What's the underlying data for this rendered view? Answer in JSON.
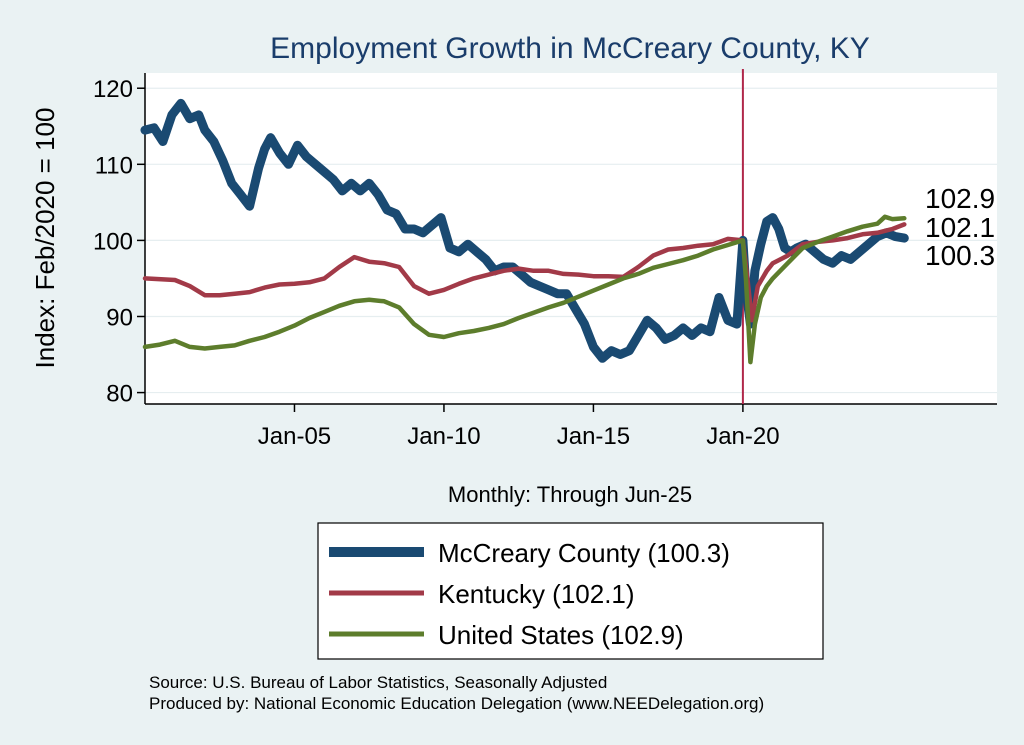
{
  "chart_data": {
    "type": "line",
    "title": "Employment Growth in McCreary  County, KY",
    "ylabel": "Index: Feb/2020 = 100",
    "xlabel": "Monthly: Through Jun-25",
    "ylim": [
      78.5,
      122
    ],
    "yticks": [
      80,
      90,
      100,
      110,
      120
    ],
    "xlim": [
      2000.0,
      2028.5
    ],
    "xticks": [
      {
        "x": 2005.0,
        "label": "Jan-05"
      },
      {
        "x": 2010.0,
        "label": "Jan-10"
      },
      {
        "x": 2015.0,
        "label": "Jan-15"
      },
      {
        "x": 2020.0,
        "label": "Jan-20"
      }
    ],
    "vline": {
      "x": 2020.0,
      "color": "#b0284a"
    },
    "series": [
      {
        "name": "McCreary  County",
        "legend": "McCreary  County (100.3)",
        "end_label": "100.3",
        "end_value": 100.3,
        "color": "#1a4a72",
        "x": [
          2000.0,
          2000.3,
          2000.6,
          2000.9,
          2001.2,
          2001.5,
          2001.8,
          2002.0,
          2002.3,
          2002.6,
          2002.9,
          2003.2,
          2003.5,
          2003.8,
          2004.0,
          2004.2,
          2004.5,
          2004.8,
          2005.1,
          2005.4,
          2005.7,
          2006.0,
          2006.3,
          2006.6,
          2006.9,
          2007.2,
          2007.5,
          2007.8,
          2008.1,
          2008.4,
          2008.7,
          2009.0,
          2009.3,
          2009.6,
          2009.9,
          2010.2,
          2010.5,
          2010.8,
          2011.1,
          2011.4,
          2011.7,
          2012.0,
          2012.3,
          2012.6,
          2012.9,
          2013.2,
          2013.5,
          2013.8,
          2014.1,
          2014.4,
          2014.7,
          2015.0,
          2015.3,
          2015.6,
          2015.9,
          2016.2,
          2016.5,
          2016.8,
          2017.1,
          2017.4,
          2017.7,
          2018.0,
          2018.3,
          2018.6,
          2018.9,
          2019.2,
          2019.5,
          2019.8,
          2020.0,
          2020.1,
          2020.2,
          2020.25,
          2020.4,
          2020.6,
          2020.8,
          2021.0,
          2021.2,
          2021.4,
          2021.6,
          2021.8,
          2022.1,
          2022.4,
          2022.7,
          2023.0,
          2023.3,
          2023.6,
          2023.9,
          2024.2,
          2024.5,
          2024.8,
          2025.1,
          2025.4
        ],
        "values": [
          114.5,
          114.8,
          113.0,
          116.5,
          118.0,
          116.0,
          116.5,
          114.5,
          113.0,
          110.5,
          107.5,
          106.0,
          104.5,
          109.5,
          112.0,
          113.5,
          111.5,
          110.0,
          112.5,
          111.0,
          110.0,
          109.0,
          108.0,
          106.5,
          107.5,
          106.5,
          107.5,
          106.0,
          104.0,
          103.5,
          101.5,
          101.5,
          101.0,
          102.0,
          103.0,
          99.0,
          98.5,
          99.5,
          98.5,
          97.5,
          96.0,
          96.5,
          96.5,
          95.5,
          94.5,
          94.0,
          93.5,
          93.0,
          93.0,
          91.0,
          89.0,
          86.0,
          84.5,
          85.5,
          85.0,
          85.5,
          87.5,
          89.5,
          88.5,
          87.0,
          87.5,
          88.5,
          87.5,
          88.5,
          88.0,
          92.5,
          89.5,
          89.0,
          100.0,
          93.5,
          90.5,
          89.0,
          96.0,
          99.5,
          102.5,
          103.0,
          101.5,
          99.0,
          98.5,
          99.0,
          99.5,
          98.5,
          97.5,
          97.0,
          98.0,
          97.5,
          98.5,
          99.5,
          100.5,
          101.0,
          100.5,
          100.3
        ]
      },
      {
        "name": "Kentucky",
        "legend": "Kentucky (102.1)",
        "end_label": "102.1",
        "end_value": 102.1,
        "color": "#a23a48",
        "x": [
          2000.0,
          2001.0,
          2001.5,
          2002.0,
          2002.5,
          2003.0,
          2003.5,
          2004.0,
          2004.5,
          2005.0,
          2005.5,
          2006.0,
          2006.5,
          2007.0,
          2007.5,
          2008.0,
          2008.5,
          2009.0,
          2009.5,
          2010.0,
          2010.5,
          2011.0,
          2011.5,
          2012.0,
          2012.5,
          2013.0,
          2013.5,
          2014.0,
          2014.5,
          2015.0,
          2015.5,
          2016.0,
          2016.5,
          2017.0,
          2017.5,
          2018.0,
          2018.5,
          2019.0,
          2019.5,
          2020.0,
          2020.15,
          2020.3,
          2020.5,
          2020.8,
          2021.0,
          2021.5,
          2022.0,
          2022.5,
          2023.0,
          2023.5,
          2024.0,
          2024.5,
          2025.0,
          2025.4
        ],
        "values": [
          95.0,
          94.8,
          94.0,
          92.8,
          92.8,
          93.0,
          93.2,
          93.8,
          94.2,
          94.3,
          94.5,
          95.0,
          96.5,
          97.8,
          97.2,
          97.0,
          96.5,
          94.0,
          93.0,
          93.5,
          94.3,
          95.0,
          95.5,
          96.0,
          96.3,
          96.0,
          96.0,
          95.6,
          95.5,
          95.3,
          95.3,
          95.2,
          96.5,
          98.0,
          98.8,
          99.0,
          99.3,
          99.5,
          100.2,
          100.0,
          95.0,
          89.5,
          94.0,
          96.0,
          97.0,
          98.0,
          99.5,
          99.8,
          100.0,
          100.3,
          100.8,
          101.0,
          101.5,
          102.1
        ]
      },
      {
        "name": "United States",
        "legend": "United States (102.9)",
        "end_label": "102.9",
        "end_value": 102.9,
        "color": "#5d7d2c",
        "x": [
          2000.0,
          2000.5,
          2001.0,
          2001.5,
          2002.0,
          2002.5,
          2003.0,
          2003.5,
          2004.0,
          2004.5,
          2005.0,
          2005.5,
          2006.0,
          2006.5,
          2007.0,
          2007.5,
          2008.0,
          2008.5,
          2009.0,
          2009.5,
          2010.0,
          2010.5,
          2011.0,
          2011.5,
          2012.0,
          2012.5,
          2013.0,
          2013.5,
          2014.0,
          2014.5,
          2015.0,
          2015.5,
          2016.0,
          2016.5,
          2017.0,
          2017.5,
          2018.0,
          2018.5,
          2019.0,
          2019.5,
          2020.0,
          2020.1,
          2020.25,
          2020.4,
          2020.6,
          2020.8,
          2021.0,
          2021.5,
          2022.0,
          2022.5,
          2023.0,
          2023.5,
          2024.0,
          2024.5,
          2024.75,
          2025.0,
          2025.4
        ],
        "values": [
          86.0,
          86.3,
          86.8,
          86.0,
          85.8,
          86.0,
          86.2,
          86.8,
          87.3,
          88.0,
          88.8,
          89.8,
          90.6,
          91.4,
          92.0,
          92.2,
          92.0,
          91.2,
          89.0,
          87.6,
          87.3,
          87.8,
          88.1,
          88.5,
          89.0,
          89.8,
          90.5,
          91.2,
          91.8,
          92.6,
          93.4,
          94.2,
          95.0,
          95.6,
          96.4,
          96.9,
          97.4,
          98.0,
          98.8,
          99.4,
          100.0,
          95.0,
          84.0,
          89.0,
          92.5,
          94.0,
          95.0,
          97.0,
          99.0,
          99.8,
          100.5,
          101.2,
          101.8,
          102.2,
          103.1,
          102.8,
          102.9
        ]
      }
    ],
    "legend_position": "bottom"
  },
  "source": "Source: U.S. Bureau of Labor Statistics, Seasonally Adjusted",
  "produced_by": "Produced by: National Economic Education Delegation (www.NEEDelegation.org)"
}
